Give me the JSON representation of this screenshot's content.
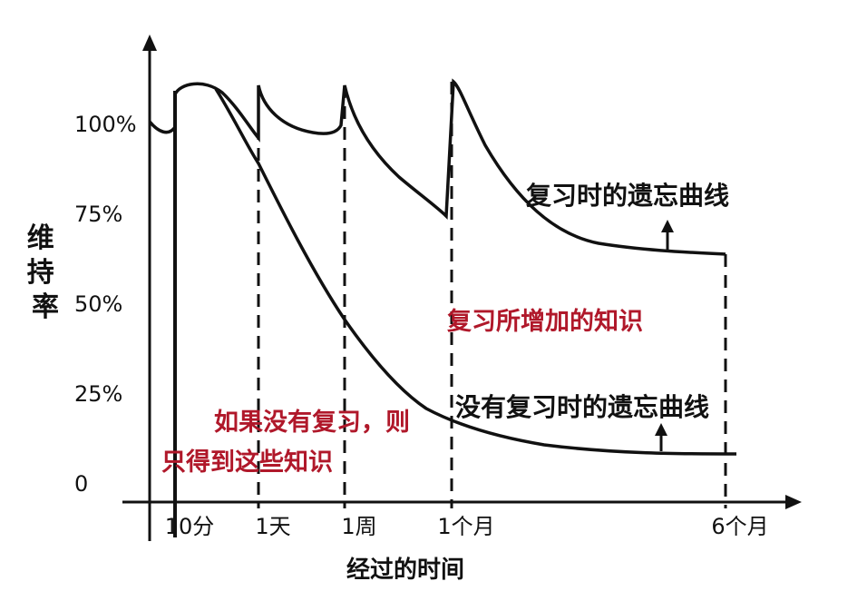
{
  "chart_data": {
    "type": "line",
    "ylabel": "维持率",
    "xlabel": "经过的时间",
    "y_ticks": [
      {
        "label": "100%",
        "value": 100
      },
      {
        "label": "75%",
        "value": 75
      },
      {
        "label": "50%",
        "value": 50
      },
      {
        "label": "25%",
        "value": 25
      },
      {
        "label": "0",
        "value": 0
      }
    ],
    "x_ticks": [
      "10分",
      "1天",
      "1周",
      "1个月",
      "6个月"
    ],
    "ylim": [
      0,
      110
    ],
    "grid": false,
    "series": [
      {
        "name": "复习时的遗忘曲线",
        "points": [
          {
            "x": "0",
            "y": 97
          },
          {
            "x": "10分",
            "y": 97
          },
          {
            "x": "10分",
            "y": 106
          },
          {
            "x": "1天",
            "y": 106
          },
          {
            "x": "1天",
            "y": 96
          },
          {
            "x": "1周",
            "y": 106
          },
          {
            "x": "1周",
            "y": 95
          },
          {
            "x": "1个月",
            "y": 107
          },
          {
            "x": "1个月",
            "y": 76
          },
          {
            "x": "6个月",
            "y": 65
          }
        ]
      },
      {
        "name": "没有复习时的遗忘曲线",
        "points": [
          {
            "x": "10分",
            "y": 106
          },
          {
            "x": "1天",
            "y": 86
          },
          {
            "x": "1周",
            "y": 48
          },
          {
            "x": "1个月",
            "y": 21
          },
          {
            "x": "6个月",
            "y": 12
          }
        ]
      }
    ],
    "annotations": {
      "review_curve": "复习时的遗忘曲线",
      "gain": "复习所增加的知识",
      "no_review_curve": "没有复习时的遗忘曲线",
      "no_review_line1": "如果没有复习，则",
      "no_review_line2": "只得到这些知识"
    }
  },
  "colors": {
    "axis": "#111111",
    "curve": "#111111",
    "annotation_red": "#b0182a"
  }
}
